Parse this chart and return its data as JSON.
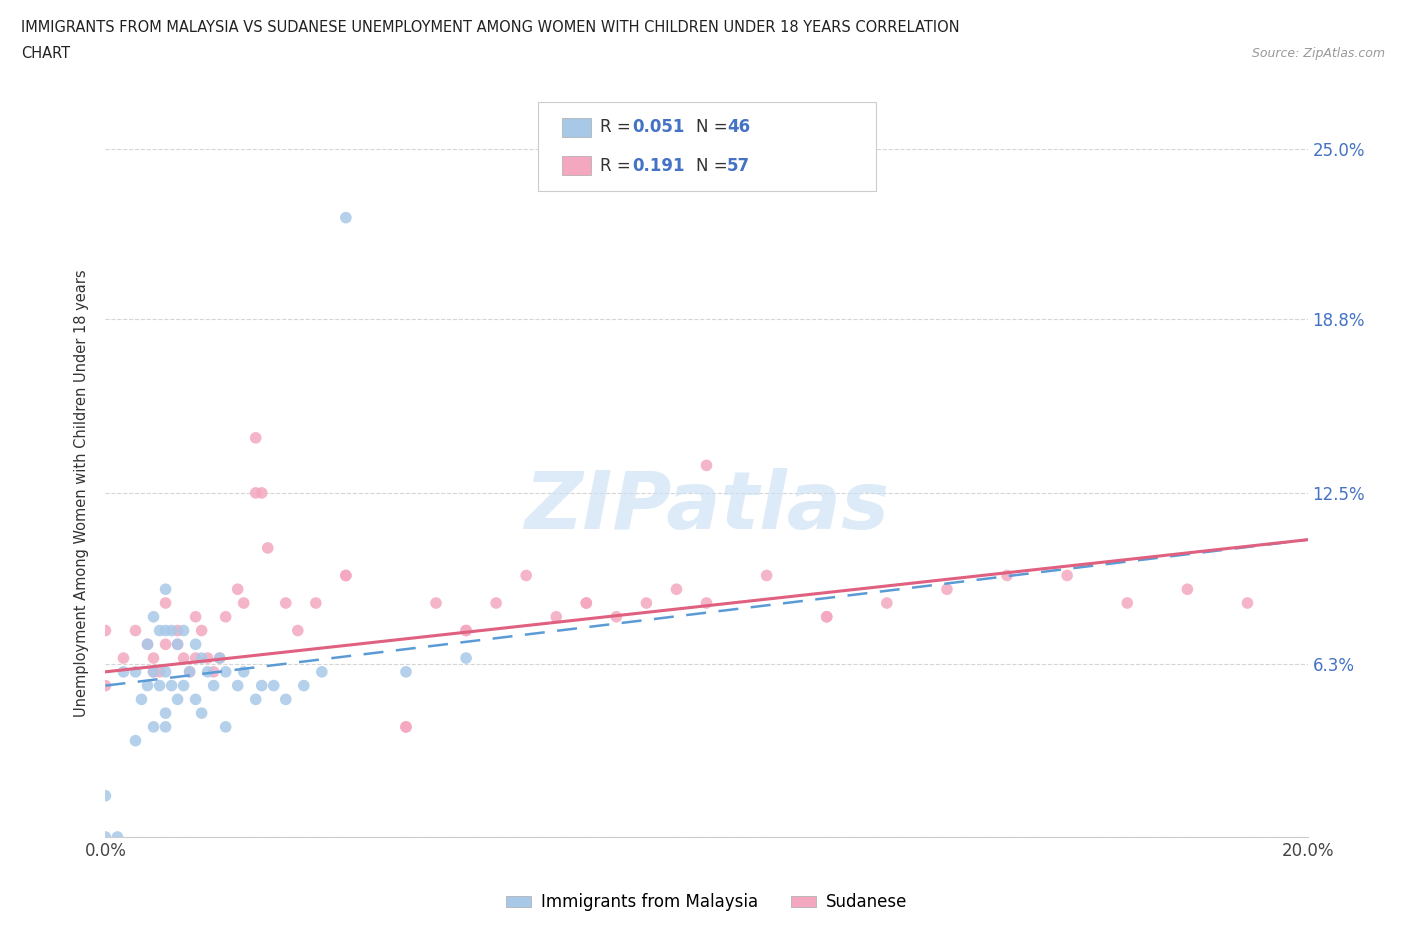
{
  "title_line1": "IMMIGRANTS FROM MALAYSIA VS SUDANESE UNEMPLOYMENT AMONG WOMEN WITH CHILDREN UNDER 18 YEARS CORRELATION",
  "title_line2": "CHART",
  "source": "Source: ZipAtlas.com",
  "ylabel": "Unemployment Among Women with Children Under 18 years",
  "xlim": [
    0.0,
    0.2
  ],
  "ylim": [
    0.0,
    0.25
  ],
  "yticks": [
    0.0,
    0.063,
    0.125,
    0.188,
    0.25
  ],
  "ytick_labels": [
    "",
    "6.3%",
    "12.5%",
    "18.8%",
    "25.0%"
  ],
  "xtick_vals": [
    0.0,
    0.05,
    0.1,
    0.15,
    0.2
  ],
  "xtick_labels": [
    "0.0%",
    "",
    "",
    "",
    "20.0%"
  ],
  "color_malaysia": "#a8c8e8",
  "color_sudanese": "#f4a8c0",
  "trend_color_malaysia": "#5b9bd5",
  "trend_color_sudanese": "#e06080",
  "R1": "0.051",
  "N1": "46",
  "R2": "0.191",
  "N2": "57",
  "legend1_label": "Immigrants from Malaysia",
  "legend2_label": "Sudanese",
  "malaysia_x": [
    0.0,
    0.0,
    0.002,
    0.003,
    0.005,
    0.005,
    0.006,
    0.007,
    0.007,
    0.008,
    0.008,
    0.008,
    0.009,
    0.009,
    0.01,
    0.01,
    0.01,
    0.01,
    0.011,
    0.011,
    0.012,
    0.012,
    0.013,
    0.013,
    0.014,
    0.015,
    0.015,
    0.016,
    0.016,
    0.017,
    0.018,
    0.019,
    0.02,
    0.02,
    0.022,
    0.023,
    0.025,
    0.026,
    0.028,
    0.03,
    0.033,
    0.036,
    0.04,
    0.05,
    0.06,
    0.01
  ],
  "malaysia_y": [
    0.0,
    0.015,
    0.0,
    0.06,
    0.035,
    0.06,
    0.05,
    0.055,
    0.07,
    0.04,
    0.06,
    0.08,
    0.055,
    0.075,
    0.045,
    0.06,
    0.075,
    0.09,
    0.055,
    0.075,
    0.05,
    0.07,
    0.055,
    0.075,
    0.06,
    0.05,
    0.07,
    0.045,
    0.065,
    0.06,
    0.055,
    0.065,
    0.04,
    0.06,
    0.055,
    0.06,
    0.05,
    0.055,
    0.055,
    0.05,
    0.055,
    0.06,
    0.225,
    0.06,
    0.065,
    0.04
  ],
  "sudanese_x": [
    0.0,
    0.0,
    0.003,
    0.005,
    0.007,
    0.008,
    0.009,
    0.01,
    0.01,
    0.012,
    0.013,
    0.014,
    0.015,
    0.015,
    0.016,
    0.017,
    0.018,
    0.019,
    0.02,
    0.022,
    0.023,
    0.025,
    0.026,
    0.027,
    0.03,
    0.032,
    0.035,
    0.04,
    0.05,
    0.055,
    0.06,
    0.065,
    0.07,
    0.075,
    0.08,
    0.085,
    0.09,
    0.095,
    0.1,
    0.11,
    0.12,
    0.13,
    0.14,
    0.15,
    0.16,
    0.17,
    0.18,
    0.19,
    0.05,
    0.08,
    0.1,
    0.12,
    0.025,
    0.04,
    0.06,
    0.008,
    0.012
  ],
  "sudanese_y": [
    0.055,
    0.075,
    0.065,
    0.075,
    0.07,
    0.065,
    0.06,
    0.07,
    0.085,
    0.075,
    0.065,
    0.06,
    0.065,
    0.08,
    0.075,
    0.065,
    0.06,
    0.065,
    0.08,
    0.09,
    0.085,
    0.145,
    0.125,
    0.105,
    0.085,
    0.075,
    0.085,
    0.095,
    0.04,
    0.085,
    0.075,
    0.085,
    0.095,
    0.08,
    0.085,
    0.08,
    0.085,
    0.09,
    0.085,
    0.095,
    0.08,
    0.085,
    0.09,
    0.095,
    0.095,
    0.085,
    0.09,
    0.085,
    0.04,
    0.085,
    0.135,
    0.08,
    0.125,
    0.095,
    0.075,
    0.06,
    0.07
  ],
  "trend_malaysia_x0": 0.0,
  "trend_malaysia_y0": 0.055,
  "trend_malaysia_x1": 0.2,
  "trend_malaysia_y1": 0.108,
  "trend_sudanese_x0": 0.0,
  "trend_sudanese_y0": 0.06,
  "trend_sudanese_x1": 0.2,
  "trend_sudanese_y1": 0.108
}
